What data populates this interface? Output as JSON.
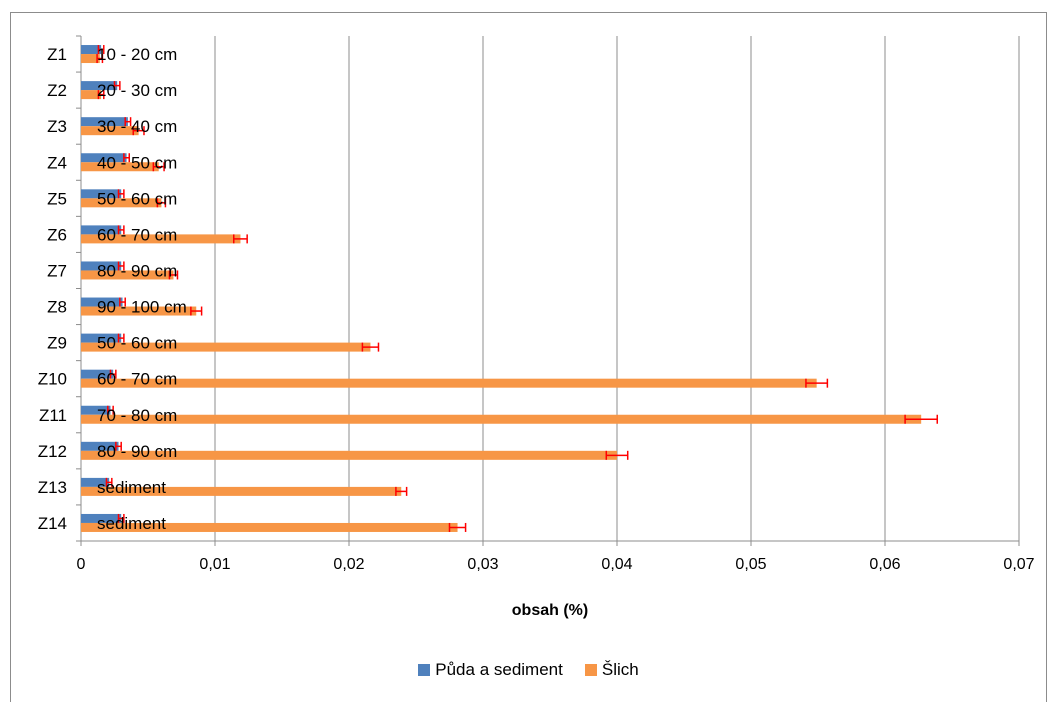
{
  "chart_data": {
    "type": "bar",
    "orientation": "horizontal",
    "categories": [
      "Z1",
      "Z2",
      "Z3",
      "Z4",
      "Z5",
      "Z6",
      "Z7",
      "Z8",
      "Z9",
      "Z10",
      "Z11",
      "Z12",
      "Z13",
      "Z14"
    ],
    "bar_labels": [
      "10 - 20 cm",
      "20 - 30 cm",
      "30 - 40 cm",
      "40 - 50 cm",
      "50 - 60 cm",
      "60 - 70 cm",
      "80 - 90 cm",
      "90 - 100 cm",
      "50 - 60 cm",
      "60 - 70 cm",
      "70 - 80 cm",
      "80 - 90 cm",
      "sediment",
      "sediment"
    ],
    "series": [
      {
        "name": "Půda a sediment",
        "color": "#4f81bd",
        "values": [
          0.0015,
          0.0027,
          0.0035,
          0.0034,
          0.003,
          0.003,
          0.003,
          0.0031,
          0.003,
          0.0024,
          0.0022,
          0.0028,
          0.0021,
          0.003
        ],
        "errors": [
          0.0002,
          0.0002,
          0.0002,
          0.0002,
          0.0002,
          0.0002,
          0.0002,
          0.0002,
          0.0002,
          0.0002,
          0.0002,
          0.0002,
          0.0002,
          0.0002
        ]
      },
      {
        "name": "Šlich",
        "color": "#f79646",
        "values": [
          0.0014,
          0.0015,
          0.0043,
          0.0058,
          0.006,
          0.0119,
          0.0069,
          0.0086,
          0.0216,
          0.0549,
          0.0627,
          0.04,
          0.0239,
          0.0281
        ],
        "errors": [
          0.0002,
          0.0002,
          0.0004,
          0.0004,
          0.0003,
          0.0005,
          0.0003,
          0.0004,
          0.0006,
          0.0008,
          0.0012,
          0.0008,
          0.0004,
          0.0006
        ]
      }
    ],
    "xlabel": "obsah (%)",
    "ylabel": "",
    "xlim": [
      0,
      0.07
    ],
    "xticks": [
      "0",
      "0,01",
      "0,02",
      "0,03",
      "0,04",
      "0,05",
      "0,06",
      "0,07"
    ],
    "grid": true,
    "legend_position": "bottom",
    "error_bar_color": "#ff0000"
  }
}
